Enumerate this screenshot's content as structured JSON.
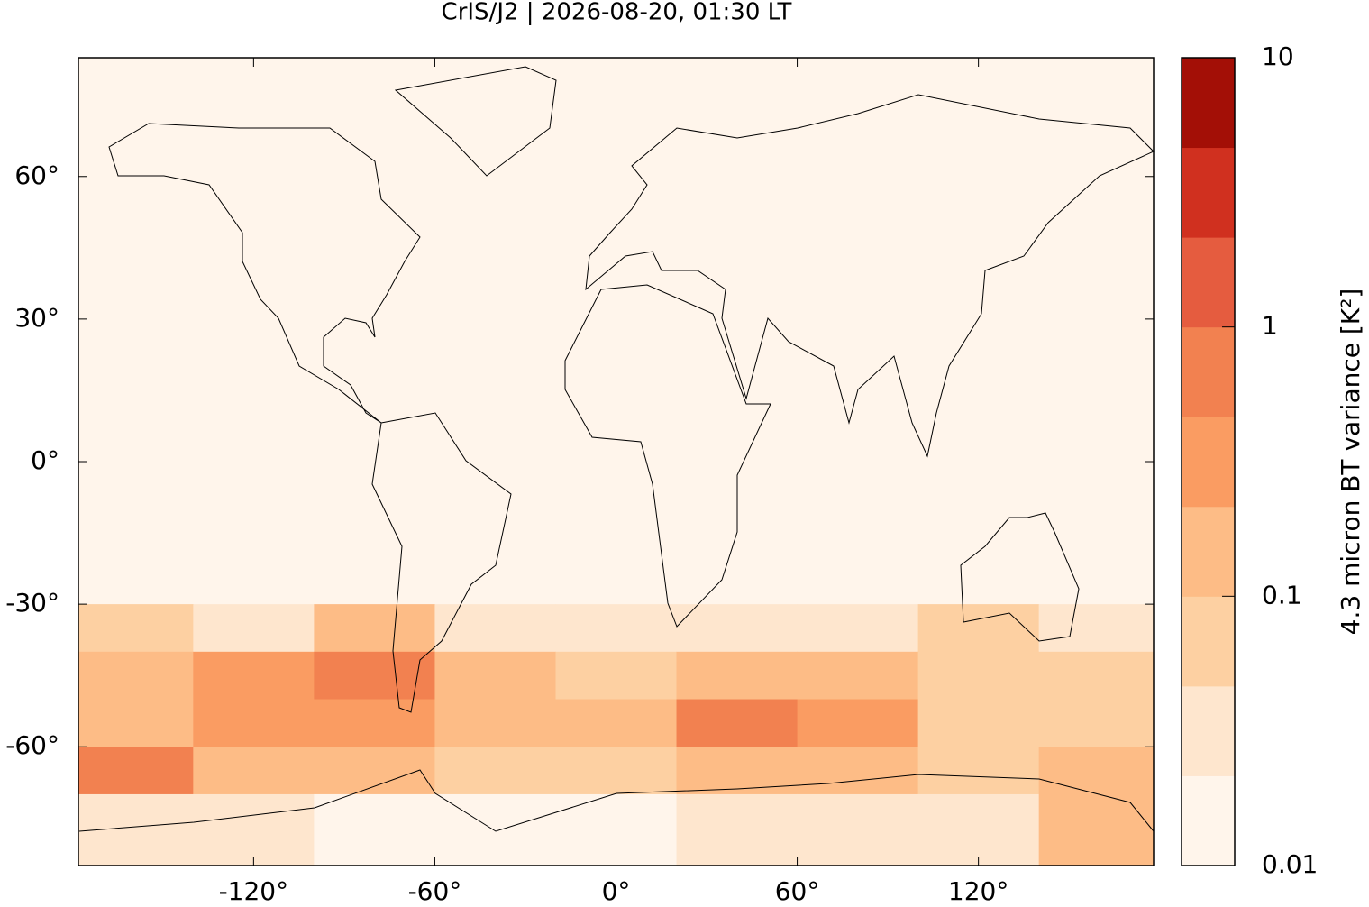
{
  "chart_data": {
    "type": "map",
    "title": "CrIS/J2 | 2026-08-20, 01:30 LT",
    "xlim": [
      -178,
      178
    ],
    "ylim": [
      -85,
      85
    ],
    "xticks": [
      {
        "value": -120,
        "label": "-120°"
      },
      {
        "value": -60,
        "label": "-60°"
      },
      {
        "value": 0,
        "label": "0°"
      },
      {
        "value": 60,
        "label": "60°"
      },
      {
        "value": 120,
        "label": "120°"
      }
    ],
    "yticks": [
      {
        "value": 60,
        "label": "60°"
      },
      {
        "value": 30,
        "label": "30°"
      },
      {
        "value": 0,
        "label": "0°"
      },
      {
        "value": -30,
        "label": "-30°"
      },
      {
        "value": -60,
        "label": "-60°"
      }
    ],
    "lon_bins": [
      -178,
      -140,
      -100,
      -60,
      -20,
      20,
      60,
      100,
      140,
      178
    ],
    "lat_bins": [
      85,
      -30,
      -40,
      -50,
      -60,
      -70,
      -85
    ],
    "values": [
      [
        0.015,
        0.015,
        0.015,
        0.015,
        0.015,
        0.015,
        0.015,
        0.015,
        0.015
      ],
      [
        0.05,
        0.04,
        0.1,
        0.04,
        0.03,
        0.03,
        0.03,
        0.05,
        0.04
      ],
      [
        0.15,
        0.3,
        0.6,
        0.1,
        0.08,
        0.1,
        0.2,
        0.08,
        0.06
      ],
      [
        0.2,
        0.4,
        0.4,
        0.1,
        0.2,
        0.5,
        0.3,
        0.08,
        0.08
      ],
      [
        0.6,
        0.1,
        0.1,
        0.06,
        0.06,
        0.1,
        0.1,
        0.05,
        0.2
      ],
      [
        0.03,
        0.03,
        0.02,
        0.02,
        0.02,
        0.03,
        0.03,
        0.03,
        0.15
      ]
    ],
    "colorbar_label": "4.3 micron BT variance [K²]",
    "zlim": [
      0.01,
      10
    ],
    "zticks": [
      0.01,
      0.1,
      1,
      10
    ],
    "zscale": "log",
    "colors": [
      "#fff5eb",
      "#fee6ce",
      "#fdd0a2",
      "#fdbc86",
      "#fa9c62",
      "#f28150",
      "#e55c3f",
      "#d0301f",
      "#a30f06"
    ]
  }
}
